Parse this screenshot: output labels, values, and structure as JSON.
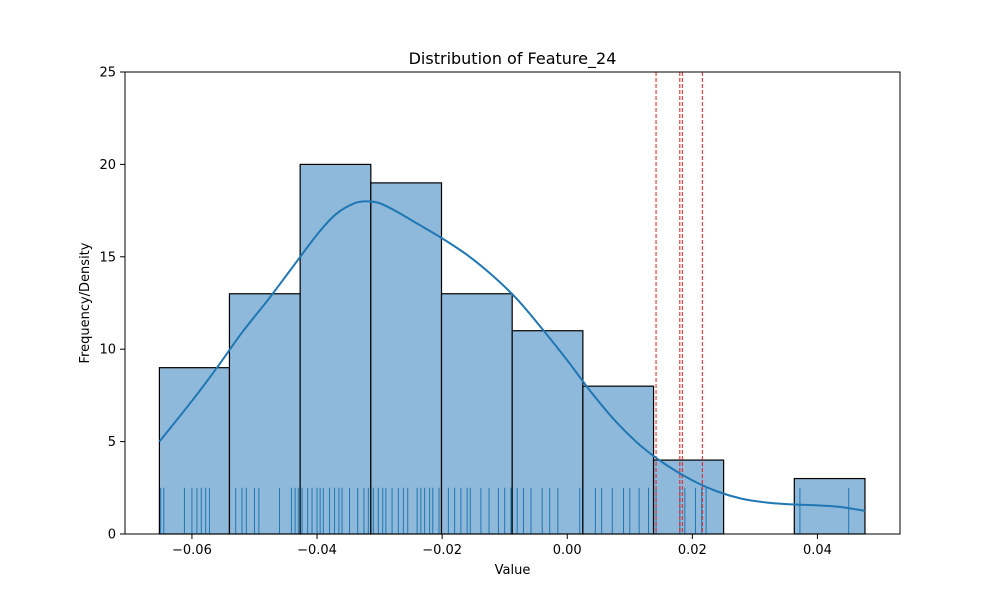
{
  "chart_data": {
    "type": "histogram",
    "title": "Distribution of Feature_24",
    "xlabel": "Value",
    "ylabel": "Frequency/Density",
    "xlim": [
      -0.0707,
      0.0532
    ],
    "ylim": [
      0,
      25
    ],
    "xticks": [
      -0.06,
      -0.04,
      -0.02,
      0.0,
      0.02,
      0.04
    ],
    "xtick_labels": [
      "−0.06",
      "−0.04",
      "−0.02",
      "0.00",
      "0.02",
      "0.04"
    ],
    "yticks": [
      0,
      5,
      10,
      15,
      20,
      25
    ],
    "ytick_labels": [
      "0",
      "5",
      "10",
      "15",
      "20",
      "25"
    ],
    "grid": false,
    "colors": {
      "bar_fill": "#8fb9da",
      "bar_edge": "#000000",
      "kde_line": "#1f77b4",
      "rug": "#1f77b4",
      "vlines": "#e41a1c"
    },
    "bins": [
      {
        "x0": -0.0652,
        "x1": -0.054,
        "count": 9
      },
      {
        "x0": -0.054,
        "x1": -0.0427,
        "count": 13
      },
      {
        "x0": -0.0427,
        "x1": -0.0314,
        "count": 20
      },
      {
        "x0": -0.0314,
        "x1": -0.0201,
        "count": 19
      },
      {
        "x0": -0.0201,
        "x1": -0.0088,
        "count": 13
      },
      {
        "x0": -0.0088,
        "x1": 0.0025,
        "count": 11
      },
      {
        "x0": 0.0025,
        "x1": 0.0138,
        "count": 8
      },
      {
        "x0": 0.0138,
        "x1": 0.025,
        "count": 4
      },
      {
        "x0": 0.025,
        "x1": 0.0363,
        "count": 0
      },
      {
        "x0": 0.0363,
        "x1": 0.0476,
        "count": 3
      }
    ],
    "kde": {
      "x": [
        -0.0652,
        -0.06,
        -0.056,
        -0.052,
        -0.048,
        -0.044,
        -0.04,
        -0.037,
        -0.034,
        -0.032,
        -0.03,
        -0.027,
        -0.024,
        -0.02,
        -0.016,
        -0.012,
        -0.008,
        -0.004,
        0.0,
        0.004,
        0.008,
        0.012,
        0.016,
        0.02,
        0.024,
        0.028,
        0.032,
        0.036,
        0.04,
        0.044,
        0.0476
      ],
      "y": [
        5.0,
        7.2,
        9.0,
        10.9,
        12.6,
        14.4,
        16.2,
        17.3,
        17.9,
        18.0,
        17.9,
        17.4,
        16.8,
        16.0,
        15.1,
        14.0,
        12.7,
        11.1,
        9.4,
        7.6,
        6.0,
        4.7,
        3.7,
        2.9,
        2.3,
        1.9,
        1.7,
        1.6,
        1.55,
        1.45,
        1.25
      ]
    },
    "rug": {
      "height": 2.5,
      "values": [
        -0.065,
        -0.0645,
        -0.0612,
        -0.06,
        -0.0592,
        -0.0585,
        -0.0578,
        -0.0572,
        -0.053,
        -0.052,
        -0.0513,
        -0.05,
        -0.0493,
        -0.046,
        -0.0441,
        -0.0435,
        -0.043,
        -0.0424,
        -0.0415,
        -0.0408,
        -0.04,
        -0.0395,
        -0.039,
        -0.038,
        -0.0372,
        -0.0365,
        -0.036,
        -0.0348,
        -0.0335,
        -0.0325,
        -0.0318,
        -0.031,
        -0.0302,
        -0.0295,
        -0.029,
        -0.028,
        -0.027,
        -0.0262,
        -0.0255,
        -0.024,
        -0.0234,
        -0.0228,
        -0.022,
        -0.0215,
        -0.0205,
        -0.019,
        -0.018,
        -0.017,
        -0.016,
        -0.0155,
        -0.0138,
        -0.0125,
        -0.011,
        -0.01,
        -0.009,
        -0.008,
        -0.007,
        -0.0058,
        -0.004,
        -0.0028,
        -0.0015,
        0.002,
        0.0045,
        0.0055,
        0.0072,
        0.009,
        0.01,
        0.0115,
        0.013,
        0.0142,
        0.018,
        0.0188,
        0.0205,
        0.0215,
        0.0222,
        0.0372,
        0.045
      ],
      "highlight_values": [
        0.0142,
        0.018,
        0.0184,
        0.0216
      ]
    }
  }
}
